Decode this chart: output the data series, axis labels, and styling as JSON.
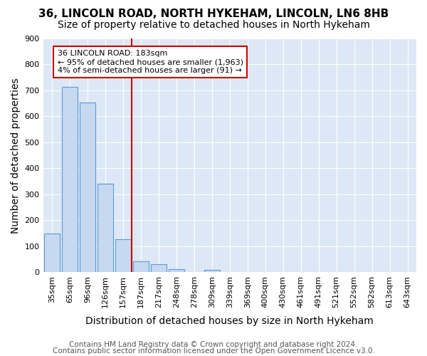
{
  "title": "36, LINCOLN ROAD, NORTH HYKEHAM, LINCOLN, LN6 8HB",
  "subtitle": "Size of property relative to detached houses in North Hykeham",
  "xlabel": "Distribution of detached houses by size in North Hykeham",
  "ylabel": "Number of detached properties",
  "footnote1": "Contains HM Land Registry data © Crown copyright and database right 2024.",
  "footnote2": "Contains public sector information licensed under the Open Government Licence v3.0.",
  "bin_labels": [
    "35sqm",
    "65sqm",
    "96sqm",
    "126sqm",
    "157sqm",
    "187sqm",
    "217sqm",
    "248sqm",
    "278sqm",
    "309sqm",
    "339sqm",
    "369sqm",
    "400sqm",
    "430sqm",
    "461sqm",
    "491sqm",
    "521sqm",
    "552sqm",
    "582sqm",
    "613sqm",
    "643sqm"
  ],
  "bar_values": [
    150,
    714,
    653,
    340,
    128,
    43,
    30,
    12,
    0,
    9,
    0,
    0,
    0,
    0,
    0,
    0,
    0,
    0,
    0,
    0,
    0
  ],
  "ylim": [
    0,
    900
  ],
  "yticks": [
    0,
    100,
    200,
    300,
    400,
    500,
    600,
    700,
    800,
    900
  ],
  "bar_color": "#c6d9f0",
  "bar_edge_color": "#5b9bd5",
  "red_line_x": 4.5,
  "annotation_text_line1": "36 LINCOLN ROAD: 183sqm",
  "annotation_text_line2": "← 95% of detached houses are smaller (1,963)",
  "annotation_text_line3": "4% of semi-detached houses are larger (91) →",
  "annotation_box_color": "#ffffff",
  "annotation_box_edge": "#cc0000",
  "red_line_color": "#cc0000",
  "plot_bg_color": "#dce8f5",
  "fig_bg_color": "#ffffff",
  "title_fontsize": 11,
  "subtitle_fontsize": 10,
  "axis_label_fontsize": 10,
  "tick_fontsize": 8,
  "annotation_fontsize": 8,
  "footnote_fontsize": 7.5
}
